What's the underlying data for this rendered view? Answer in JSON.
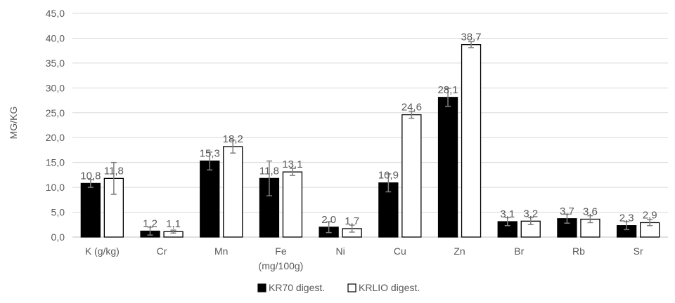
{
  "chart_data": {
    "type": "bar",
    "title": "",
    "xlabel": "",
    "ylabel": "MG/KG",
    "ylim": [
      0,
      45
    ],
    "y_ticks": [
      "0,0",
      "5,0",
      "10,0",
      "15,0",
      "20,0",
      "25,0",
      "30,0",
      "35,0",
      "40,0",
      "45,0"
    ],
    "grid": true,
    "legend_position": "bottom",
    "categories": [
      "K (g/kg)",
      "Cr",
      "Mn",
      "Fe",
      "Ni",
      "Cu",
      "Zn",
      "Br",
      "Rb",
      "Sr"
    ],
    "category_sublabels": [
      "",
      "",
      "",
      "(mg/100g)",
      "",
      "",
      "",
      "",
      "",
      ""
    ],
    "series": [
      {
        "name": "KR70 digest.",
        "color": "#000000",
        "values": [
          10.8,
          1.2,
          15.3,
          11.8,
          2.0,
          10.9,
          28.1,
          3.1,
          3.7,
          2.3
        ],
        "labels": [
          "10,8",
          "1,2",
          "15,3",
          "11,8",
          "2,0",
          "10,9",
          "28,1",
          "3,1",
          "3,7",
          "2,3"
        ],
        "errors": [
          0.8,
          0.8,
          1.8,
          3.5,
          1.1,
          1.8,
          1.8,
          0.8,
          0.9,
          0.8
        ]
      },
      {
        "name": "KRLIO digest.",
        "color": "#ffffff",
        "values": [
          11.8,
          1.1,
          18.2,
          13.1,
          1.7,
          24.6,
          38.7,
          3.2,
          3.6,
          2.9
        ],
        "labels": [
          "11,8",
          "1,1",
          "18,2",
          "13,1",
          "1,7",
          "24,6",
          "38,7",
          "3,2",
          "3,6",
          "2,9"
        ],
        "errors": [
          3.2,
          0.3,
          1.3,
          0.7,
          0.7,
          0.7,
          0.6,
          0.7,
          0.7,
          0.6
        ]
      }
    ]
  }
}
